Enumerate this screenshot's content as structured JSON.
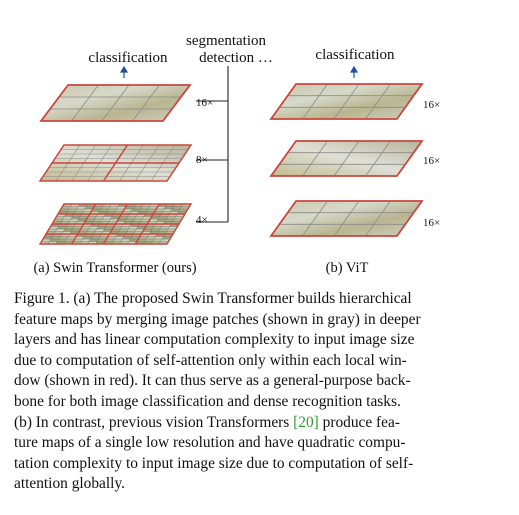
{
  "figure": {
    "swin": {
      "top_label_classification": "classification",
      "top_label_segmentation": "segmentation",
      "top_label_detection": "detection …",
      "scales": [
        "16×",
        "8×",
        "4×"
      ],
      "caption": "(a) Swin Transformer (ours)"
    },
    "vit": {
      "top_label": "classification",
      "scales": [
        "16×",
        "16×",
        "16×"
      ],
      "caption": "(b) ViT"
    }
  },
  "caption": {
    "lines": [
      {
        "text": "Figure 1. (a) The proposed Swin Transformer builds hierarchical"
      },
      {
        "text": "feature maps by merging image patches (shown in gray) in deeper"
      },
      {
        "text": "layers and has linear computation complexity to input image size"
      },
      {
        "text": "due to computation of self-attention only within each local win-"
      },
      {
        "text": "dow (shown in red). It can thus serve as a general-purpose back-"
      },
      {
        "text": "bone for both image classification and dense recognition tasks."
      },
      {
        "pre": "(b) In contrast, previous vision Transformers ",
        "cite": "[20]",
        "post": " produce fea-"
      },
      {
        "text": "ture maps of a single low resolution and have quadratic compu-"
      },
      {
        "text": "tation complexity to input image size due to computation of self-"
      },
      {
        "text": "attention globally."
      }
    ]
  }
}
